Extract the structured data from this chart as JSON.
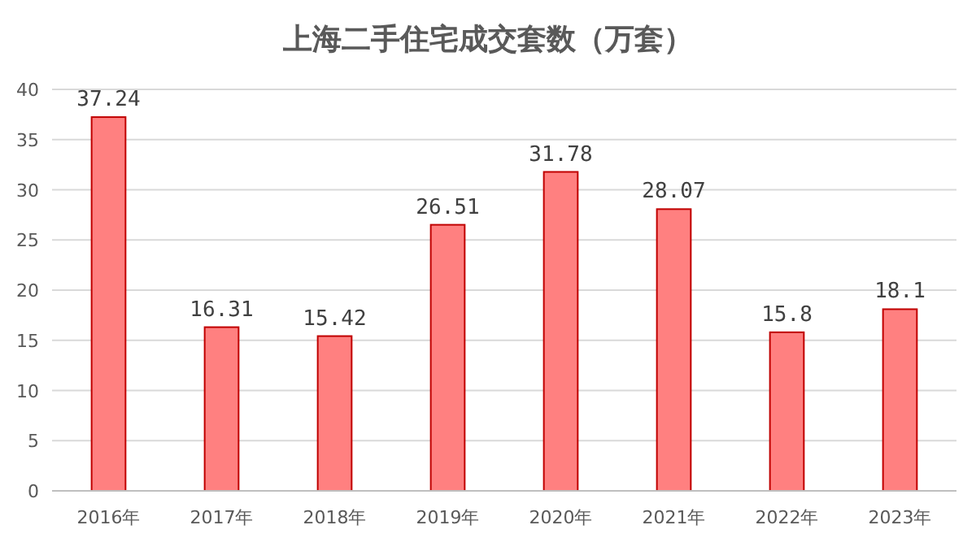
{
  "chart_data": {
    "type": "bar",
    "title": "上海二手住宅成交套数（万套）",
    "categories": [
      "2016年",
      "2017年",
      "2018年",
      "2019年",
      "2020年",
      "2021年",
      "2022年",
      "2023年"
    ],
    "values": [
      37.24,
      16.31,
      15.42,
      26.51,
      31.78,
      28.07,
      15.8,
      18.1
    ],
    "color": "#ff8080",
    "ylim": [
      0,
      40
    ],
    "yticks": [
      0,
      5,
      10,
      15,
      20,
      25,
      30,
      35,
      40
    ],
    "grid": "y",
    "data_labels": true
  }
}
